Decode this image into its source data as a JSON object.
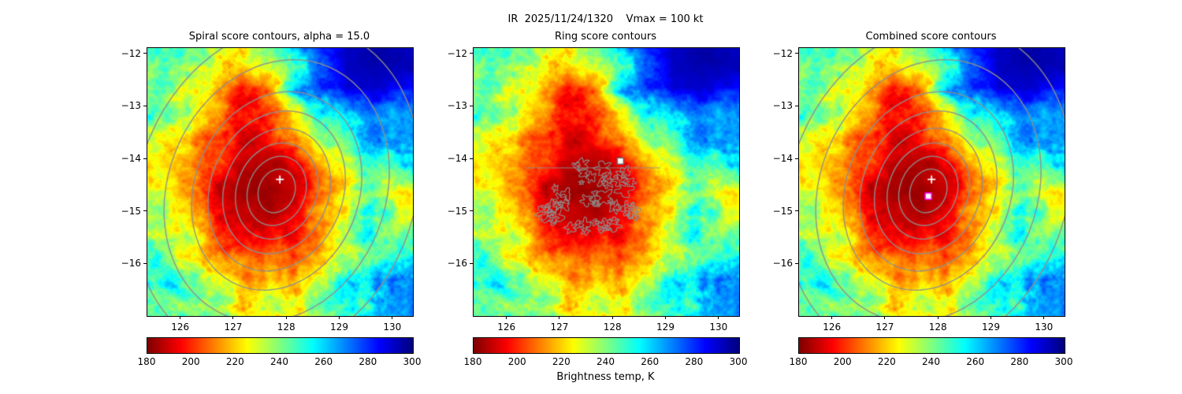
{
  "figure": {
    "title": "IR  2025/11/24/1320    Vmax = 100 kt",
    "background": "#ffffff"
  },
  "colorbar": {
    "label": "Brightness temp, K",
    "ticks": [
      180,
      200,
      220,
      240,
      260,
      280,
      300
    ],
    "vmin": 180,
    "vmax": 300,
    "colormap": "jet_r"
  },
  "axes": {
    "lon_ticks": [
      126,
      127,
      128,
      129,
      130
    ],
    "lat_ticks": [
      -12,
      -13,
      -14,
      -15,
      -16
    ],
    "extent": {
      "lon_min": 125.38,
      "lon_max": 130.39,
      "lat_min": -17.0,
      "lat_max": -11.9
    }
  },
  "panels": [
    {
      "id": "spiral",
      "title": "Spiral score contours, alpha = 15.0",
      "contour_type": "spiral",
      "markers": [
        {
          "type": "plus",
          "color": "#ffffff",
          "lon": 127.88,
          "lat": -14.4
        }
      ]
    },
    {
      "id": "ring",
      "title": "Ring score contours",
      "contour_type": "ring",
      "markers": [
        {
          "type": "square",
          "edge": "#666666",
          "fill": "#ffffff",
          "lon": 128.15,
          "lat": -14.05
        }
      ]
    },
    {
      "id": "combined",
      "title": "Combined score contours",
      "contour_type": "spiral",
      "markers": [
        {
          "type": "plus",
          "color": "#ffffff",
          "lon": 127.88,
          "lat": -14.4
        },
        {
          "type": "square",
          "edge": "#ff00ff",
          "fill": "#ffffff",
          "lon": 127.82,
          "lat": -14.72
        }
      ]
    }
  ],
  "contours": {
    "color": "#8e8e8e",
    "spiral": {
      "center_lon": 127.82,
      "center_lat": -14.62,
      "rotation_deg": 22,
      "aspect": 1.25,
      "radii_deg": [
        0.34,
        0.54,
        0.75,
        0.98,
        1.25,
        1.55,
        2.05,
        2.6
      ]
    },
    "ring": {
      "region_center_lon": 127.6,
      "region_center_lat": -14.75,
      "region_radius_lon": 1.0,
      "region_radius_lat": 0.65,
      "blob_count": 48,
      "seed": 7,
      "line_lat": -14.18,
      "line_lon_start": 126.35,
      "line_lon_end": 128.9
    }
  },
  "chart_data": {
    "type": "heatmap",
    "title": "IR  2025/11/24/1320    Vmax = 100 kt",
    "subtitles": [
      "Spiral score contours, alpha = 15.0",
      "Ring score contours",
      "Combined score contours"
    ],
    "units": "K",
    "colormap": "jet_r",
    "vmin": 180,
    "vmax": 300,
    "xlabel_ticks": [
      126,
      127,
      128,
      129,
      130
    ],
    "ylabel_ticks": [
      -12,
      -13,
      -14,
      -15,
      -16
    ],
    "extent": {
      "lon_min": 125.38,
      "lon_max": 130.39,
      "lat_min": -17.0,
      "lat_max": -11.9
    },
    "lon_grid": [
      125.65,
      126.15,
      126.65,
      127.15,
      127.65,
      128.15,
      128.65,
      129.15,
      129.65,
      130.15
    ],
    "lat_grid": [
      -12.15,
      -12.65,
      -13.15,
      -13.65,
      -14.15,
      -14.65,
      -15.15,
      -15.65,
      -16.15,
      -16.65
    ],
    "brightness_temp": [
      [
        250,
        244,
        236,
        226,
        238,
        255,
        278,
        293,
        296,
        294
      ],
      [
        248,
        238,
        224,
        200,
        212,
        255,
        278,
        291,
        293,
        288
      ],
      [
        244,
        232,
        213,
        196,
        200,
        222,
        242,
        263,
        278,
        268
      ],
      [
        232,
        224,
        204,
        192,
        192,
        205,
        228,
        240,
        266,
        270
      ],
      [
        222,
        218,
        198,
        188,
        186,
        192,
        210,
        232,
        252,
        258
      ],
      [
        230,
        214,
        194,
        184,
        183,
        189,
        205,
        228,
        240,
        218
      ],
      [
        236,
        220,
        198,
        188,
        186,
        194,
        210,
        230,
        242,
        225
      ],
      [
        242,
        230,
        210,
        198,
        196,
        204,
        218,
        236,
        250,
        248
      ],
      [
        246,
        238,
        224,
        214,
        210,
        216,
        228,
        244,
        258,
        262
      ],
      [
        250,
        242,
        234,
        228,
        226,
        230,
        238,
        250,
        264,
        272
      ]
    ]
  }
}
